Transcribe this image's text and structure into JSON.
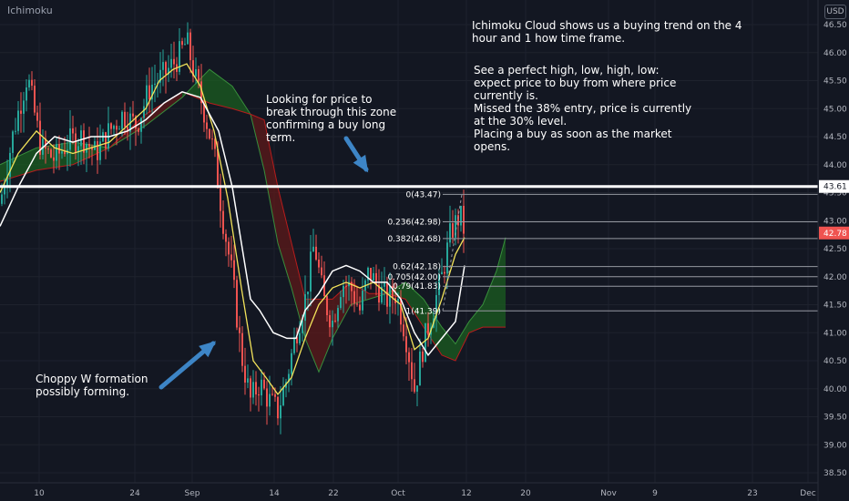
{
  "watermark": "Ichimoku",
  "currency_badge": "USD",
  "annotations": {
    "top_right": "Ichimoku Cloud shows us a buying trend on the 4\nhour and 1 how time frame.",
    "right_list": "See a perfect high, low, high, low:\nexpect price to buy from where price\ncurrently is.\nMissed the 38% entry, price is currently\nat the 30% level.\nPlacing a buy as soon as the market\nopens.",
    "middle": "Looking for price to\nbreak through this zone\nconfirming a buy long\nterm.",
    "bottom_left": "Choppy W formation\npossibly forming."
  },
  "colors": {
    "background": "#131722",
    "candle_up": "#26a69a",
    "candle_down": "#ef5350",
    "tenkan": "#f3e35a",
    "kijun": "#ffffff",
    "cloud_bull": "#1b5e20",
    "cloud_bear": "#5d1a1a",
    "arrow": "#3d85c6",
    "price_badge": "#ef5350"
  },
  "chart_data": {
    "type": "candlestick",
    "y_axis": {
      "ylim": [
        38.3,
        46.7
      ],
      "ticks": [
        "46.50",
        "46.00",
        "45.50",
        "45.00",
        "44.50",
        "44.00",
        "43.50",
        "43.00",
        "42.50",
        "42.00",
        "41.50",
        "41.00",
        "40.50",
        "40.00",
        "39.50",
        "39.00",
        "38.50"
      ]
    },
    "x_axis": {
      "ticks": [
        "10",
        "24",
        "Sep",
        "14",
        "22",
        "Oct",
        "12",
        "20",
        "Nov",
        "9",
        "23",
        "Dec"
      ]
    },
    "horizontal_line": {
      "value": 43.61,
      "label": "43.61"
    },
    "current_price": {
      "value": 42.78,
      "label": "42.78"
    },
    "fibonacci": [
      {
        "label": "0(43.47)",
        "value": 43.47
      },
      {
        "label": "0.236(42.98)",
        "value": 42.98
      },
      {
        "label": "0.382(42.68)",
        "value": 42.68
      },
      {
        "label": "0.62(42.18)",
        "value": 42.18
      },
      {
        "label": "0.705(42.00)",
        "value": 42.0
      },
      {
        "label": "0.79(41.83)",
        "value": 41.83
      },
      {
        "label": "1(41.39)",
        "value": 41.39
      }
    ],
    "price_path": [
      [
        0,
        43.3
      ],
      [
        15,
        44.6
      ],
      [
        30,
        45.6
      ],
      [
        45,
        44.3
      ],
      [
        60,
        44.1
      ],
      [
        75,
        44.4
      ],
      [
        90,
        44.5
      ],
      [
        105,
        44.2
      ],
      [
        120,
        44.6
      ],
      [
        135,
        44.9
      ],
      [
        150,
        44.7
      ],
      [
        165,
        45.4
      ],
      [
        180,
        45.6
      ],
      [
        195,
        45.9
      ],
      [
        205,
        46.2
      ],
      [
        215,
        45.5
      ],
      [
        225,
        44.9
      ],
      [
        235,
        44.2
      ],
      [
        245,
        43.0
      ],
      [
        255,
        42.0
      ],
      [
        265,
        40.6
      ],
      [
        275,
        39.8
      ],
      [
        285,
        40.1
      ],
      [
        295,
        39.8
      ],
      [
        305,
        39.6
      ],
      [
        315,
        40.2
      ],
      [
        325,
        41.0
      ],
      [
        335,
        41.6
      ],
      [
        345,
        42.6
      ],
      [
        355,
        41.6
      ],
      [
        365,
        41.2
      ],
      [
        375,
        41.9
      ],
      [
        385,
        41.8
      ],
      [
        395,
        41.4
      ],
      [
        405,
        42.1
      ],
      [
        415,
        41.8
      ],
      [
        425,
        41.6
      ],
      [
        435,
        41.7
      ],
      [
        445,
        41.0
      ],
      [
        455,
        40.0
      ],
      [
        465,
        40.8
      ],
      [
        475,
        41.4
      ],
      [
        485,
        42.0
      ],
      [
        495,
        42.8
      ],
      [
        505,
        43.1
      ],
      [
        510,
        42.8
      ]
    ],
    "tenkan_path": [
      [
        0,
        43.5
      ],
      [
        20,
        44.2
      ],
      [
        40,
        44.6
      ],
      [
        60,
        44.3
      ],
      [
        80,
        44.2
      ],
      [
        100,
        44.3
      ],
      [
        120,
        44.4
      ],
      [
        140,
        44.7
      ],
      [
        160,
        45.0
      ],
      [
        175,
        45.5
      ],
      [
        190,
        45.7
      ],
      [
        205,
        45.8
      ],
      [
        220,
        45.4
      ],
      [
        235,
        44.6
      ],
      [
        250,
        43.4
      ],
      [
        265,
        41.8
      ],
      [
        278,
        40.5
      ],
      [
        292,
        40.2
      ],
      [
        305,
        39.9
      ],
      [
        320,
        40.2
      ],
      [
        335,
        40.9
      ],
      [
        350,
        41.5
      ],
      [
        365,
        41.8
      ],
      [
        380,
        41.9
      ],
      [
        395,
        41.8
      ],
      [
        410,
        41.9
      ],
      [
        425,
        41.7
      ],
      [
        440,
        41.5
      ],
      [
        455,
        40.7
      ],
      [
        470,
        40.9
      ],
      [
        485,
        41.6
      ],
      [
        500,
        42.4
      ],
      [
        510,
        42.7
      ]
    ],
    "kijun_path": [
      [
        0,
        42.9
      ],
      [
        20,
        43.6
      ],
      [
        40,
        44.2
      ],
      [
        60,
        44.5
      ],
      [
        80,
        44.4
      ],
      [
        100,
        44.5
      ],
      [
        120,
        44.5
      ],
      [
        140,
        44.6
      ],
      [
        160,
        44.8
      ],
      [
        180,
        45.1
      ],
      [
        200,
        45.3
      ],
      [
        220,
        45.2
      ],
      [
        240,
        44.6
      ],
      [
        255,
        43.6
      ],
      [
        265,
        42.6
      ],
      [
        275,
        41.6
      ],
      [
        285,
        41.4
      ],
      [
        300,
        41.0
      ],
      [
        315,
        40.9
      ],
      [
        325,
        40.9
      ],
      [
        335,
        41.4
      ],
      [
        350,
        41.7
      ],
      [
        365,
        42.1
      ],
      [
        380,
        42.2
      ],
      [
        395,
        42.1
      ],
      [
        410,
        41.9
      ],
      [
        425,
        41.9
      ],
      [
        440,
        41.6
      ],
      [
        455,
        41.0
      ],
      [
        470,
        40.6
      ],
      [
        485,
        40.9
      ],
      [
        500,
        41.2
      ],
      [
        510,
        42.2
      ]
    ],
    "cloud_a": [
      [
        0,
        44.0
      ],
      [
        40,
        44.3
      ],
      [
        80,
        44.4
      ],
      [
        120,
        44.3
      ],
      [
        160,
        44.7
      ],
      [
        200,
        45.2
      ],
      [
        230,
        45.7
      ],
      [
        255,
        45.4
      ],
      [
        275,
        44.9
      ],
      [
        290,
        43.9
      ],
      [
        305,
        42.6
      ],
      [
        320,
        41.8
      ],
      [
        335,
        40.9
      ],
      [
        350,
        40.3
      ],
      [
        365,
        40.9
      ],
      [
        385,
        41.5
      ],
      [
        405,
        41.6
      ],
      [
        425,
        41.7
      ],
      [
        445,
        41.9
      ],
      [
        465,
        41.6
      ],
      [
        485,
        41.1
      ],
      [
        500,
        40.8
      ],
      [
        515,
        41.2
      ],
      [
        530,
        41.5
      ],
      [
        545,
        42.1
      ],
      [
        555,
        42.7
      ]
    ],
    "cloud_b": [
      [
        0,
        43.7
      ],
      [
        40,
        43.9
      ],
      [
        80,
        44.0
      ],
      [
        120,
        44.3
      ],
      [
        160,
        44.9
      ],
      [
        200,
        45.3
      ],
      [
        230,
        45.1
      ],
      [
        255,
        45.0
      ],
      [
        275,
        44.9
      ],
      [
        290,
        44.8
      ],
      [
        305,
        43.6
      ],
      [
        320,
        42.6
      ],
      [
        335,
        41.6
      ],
      [
        350,
        41.6
      ],
      [
        365,
        41.6
      ],
      [
        385,
        41.9
      ],
      [
        405,
        41.7
      ],
      [
        425,
        41.7
      ],
      [
        445,
        41.6
      ],
      [
        465,
        41.1
      ],
      [
        485,
        40.6
      ],
      [
        500,
        40.5
      ],
      [
        515,
        41.0
      ],
      [
        530,
        41.1
      ],
      [
        545,
        41.1
      ],
      [
        555,
        41.1
      ]
    ]
  }
}
